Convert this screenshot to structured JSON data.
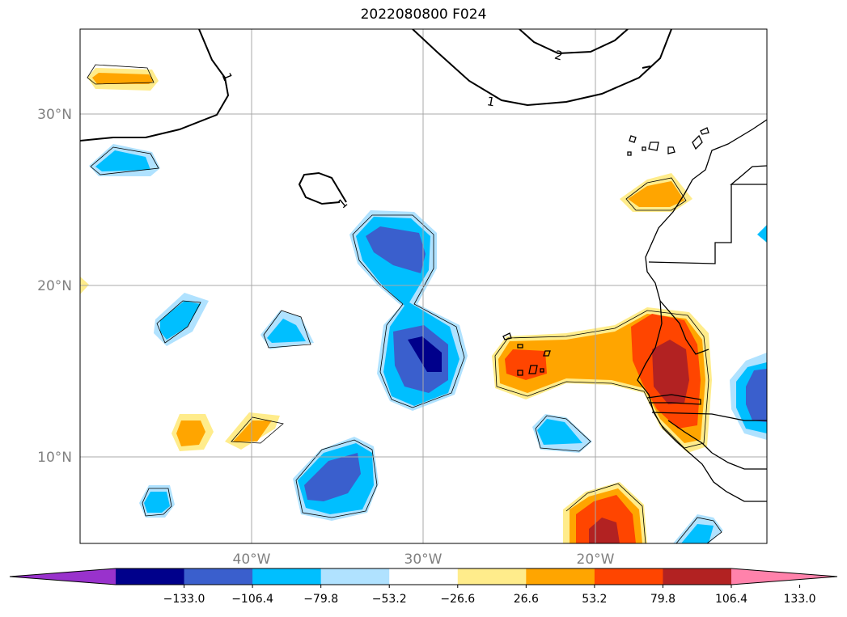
{
  "title": "2022080800 F024",
  "map": {
    "lon_range": [
      -50,
      -10
    ],
    "lat_range": [
      5,
      35
    ],
    "lat_ticks": [
      {
        "value": 30,
        "label": "30°N"
      },
      {
        "value": 20,
        "label": "20°N"
      },
      {
        "value": 10,
        "label": "10°N"
      }
    ],
    "lon_ticks": [
      {
        "value": -40,
        "label": "40°W"
      },
      {
        "value": -30,
        "label": "30°W"
      },
      {
        "value": -20,
        "label": "20°W"
      }
    ],
    "grid": true,
    "contour_labels": [
      "1",
      "1",
      "1",
      "2"
    ]
  },
  "colorbar": {
    "ticks": [
      "−133.0",
      "−106.4",
      "−79.8",
      "−53.2",
      "−26.6",
      "26.6",
      "53.2",
      "79.8",
      "106.4",
      "133.0"
    ],
    "colors": [
      "#9932cc",
      "#00008b",
      "#3a5fcd",
      "#00bfff",
      "#b0e2ff",
      "#ffffff",
      "#ffec8b",
      "#ffa500",
      "#ff4500",
      "#b22222",
      "#ff82ab"
    ],
    "extend": "both"
  },
  "colors": {
    "neg_extreme": "#00008b",
    "neg_strong": "#3a5fcd",
    "neg_mid": "#00bfff",
    "neg_weak": "#b0e2ff",
    "pos_weak": "#ffec8b",
    "pos_mid": "#ffa500",
    "pos_strong": "#ff4500",
    "pos_extreme": "#b22222"
  }
}
